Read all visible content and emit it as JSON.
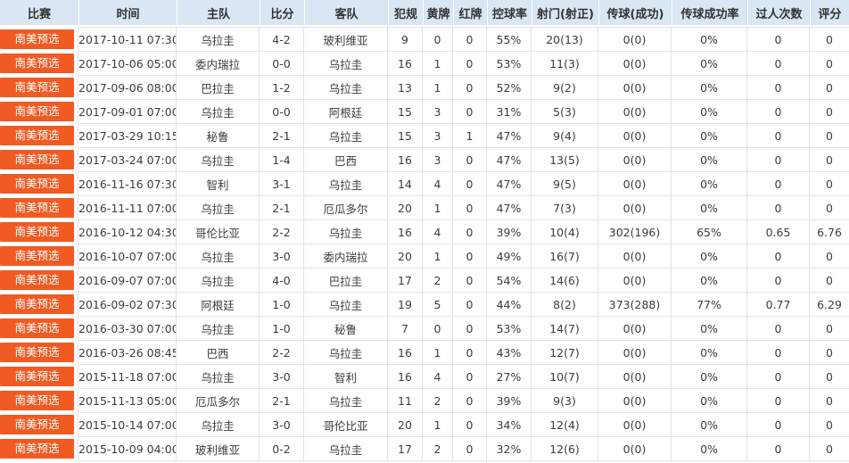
{
  "table": {
    "headers": [
      "比赛",
      "时间",
      "主队",
      "比分",
      "客队",
      "犯规",
      "黄牌",
      "红牌",
      "控球率",
      "射门(射正)",
      "传球(成功)",
      "传球成功率",
      "过人次数",
      "评分"
    ],
    "rows": [
      {
        "league": "南美预选",
        "time": "2017-10-11 07:30",
        "home": "乌拉圭",
        "score": "4-2",
        "away": "玻利维亚",
        "fouls": "9",
        "yellow": "0",
        "red": "0",
        "possession": "55%",
        "shots": "20(13)",
        "passes": "0(0)",
        "pass_rate": "0%",
        "dribbles": "0",
        "rating": "0"
      },
      {
        "league": "南美预选",
        "time": "2017-10-06 05:00",
        "home": "委内瑞拉",
        "score": "0-0",
        "away": "乌拉圭",
        "fouls": "16",
        "yellow": "1",
        "red": "0",
        "possession": "53%",
        "shots": "11(3)",
        "passes": "0(0)",
        "pass_rate": "0%",
        "dribbles": "0",
        "rating": "0"
      },
      {
        "league": "南美预选",
        "time": "2017-09-06 08:00",
        "home": "巴拉圭",
        "score": "1-2",
        "away": "乌拉圭",
        "fouls": "13",
        "yellow": "1",
        "red": "0",
        "possession": "52%",
        "shots": "9(2)",
        "passes": "0(0)",
        "pass_rate": "0%",
        "dribbles": "0",
        "rating": "0"
      },
      {
        "league": "南美预选",
        "time": "2017-09-01 07:00",
        "home": "乌拉圭",
        "score": "0-0",
        "away": "阿根廷",
        "fouls": "15",
        "yellow": "3",
        "red": "0",
        "possession": "31%",
        "shots": "5(3)",
        "passes": "0(0)",
        "pass_rate": "0%",
        "dribbles": "0",
        "rating": "0"
      },
      {
        "league": "南美预选",
        "time": "2017-03-29 10:15",
        "home": "秘鲁",
        "score": "2-1",
        "away": "乌拉圭",
        "fouls": "15",
        "yellow": "3",
        "red": "1",
        "possession": "47%",
        "shots": "9(4)",
        "passes": "0(0)",
        "pass_rate": "0%",
        "dribbles": "0",
        "rating": "0"
      },
      {
        "league": "南美预选",
        "time": "2017-03-24 07:00",
        "home": "乌拉圭",
        "score": "1-4",
        "away": "巴西",
        "fouls": "16",
        "yellow": "3",
        "red": "0",
        "possession": "47%",
        "shots": "13(5)",
        "passes": "0(0)",
        "pass_rate": "0%",
        "dribbles": "0",
        "rating": "0"
      },
      {
        "league": "南美预选",
        "time": "2016-11-16 07:30",
        "home": "智利",
        "score": "3-1",
        "away": "乌拉圭",
        "fouls": "14",
        "yellow": "4",
        "red": "0",
        "possession": "47%",
        "shots": "9(5)",
        "passes": "0(0)",
        "pass_rate": "0%",
        "dribbles": "0",
        "rating": "0"
      },
      {
        "league": "南美预选",
        "time": "2016-11-11 07:00",
        "home": "乌拉圭",
        "score": "2-1",
        "away": "厄瓜多尔",
        "fouls": "20",
        "yellow": "1",
        "red": "0",
        "possession": "47%",
        "shots": "7(3)",
        "passes": "0(0)",
        "pass_rate": "0%",
        "dribbles": "0",
        "rating": "0"
      },
      {
        "league": "南美预选",
        "time": "2016-10-12 04:30",
        "home": "哥伦比亚",
        "score": "2-2",
        "away": "乌拉圭",
        "fouls": "16",
        "yellow": "4",
        "red": "0",
        "possession": "39%",
        "shots": "10(4)",
        "passes": "302(196)",
        "pass_rate": "65%",
        "dribbles": "0.65",
        "rating": "6.76"
      },
      {
        "league": "南美预选",
        "time": "2016-10-07 07:00",
        "home": "乌拉圭",
        "score": "3-0",
        "away": "委内瑞拉",
        "fouls": "20",
        "yellow": "1",
        "red": "0",
        "possession": "49%",
        "shots": "16(7)",
        "passes": "0(0)",
        "pass_rate": "0%",
        "dribbles": "0",
        "rating": "0"
      },
      {
        "league": "南美预选",
        "time": "2016-09-07 07:00",
        "home": "乌拉圭",
        "score": "4-0",
        "away": "巴拉圭",
        "fouls": "17",
        "yellow": "2",
        "red": "0",
        "possession": "54%",
        "shots": "14(6)",
        "passes": "0(0)",
        "pass_rate": "0%",
        "dribbles": "0",
        "rating": "0"
      },
      {
        "league": "南美预选",
        "time": "2016-09-02 07:30",
        "home": "阿根廷",
        "score": "1-0",
        "away": "乌拉圭",
        "fouls": "19",
        "yellow": "5",
        "red": "0",
        "possession": "44%",
        "shots": "8(2)",
        "passes": "373(288)",
        "pass_rate": "77%",
        "dribbles": "0.77",
        "rating": "6.29"
      },
      {
        "league": "南美预选",
        "time": "2016-03-30 07:00",
        "home": "乌拉圭",
        "score": "1-0",
        "away": "秘鲁",
        "fouls": "7",
        "yellow": "0",
        "red": "0",
        "possession": "53%",
        "shots": "14(7)",
        "passes": "0(0)",
        "pass_rate": "0%",
        "dribbles": "0",
        "rating": "0"
      },
      {
        "league": "南美预选",
        "time": "2016-03-26 08:45",
        "home": "巴西",
        "score": "2-2",
        "away": "乌拉圭",
        "fouls": "16",
        "yellow": "1",
        "red": "0",
        "possession": "43%",
        "shots": "12(7)",
        "passes": "0(0)",
        "pass_rate": "0%",
        "dribbles": "0",
        "rating": "0"
      },
      {
        "league": "南美预选",
        "time": "2015-11-18 07:00",
        "home": "乌拉圭",
        "score": "3-0",
        "away": "智利",
        "fouls": "16",
        "yellow": "4",
        "red": "0",
        "possession": "27%",
        "shots": "10(7)",
        "passes": "0(0)",
        "pass_rate": "0%",
        "dribbles": "0",
        "rating": "0"
      },
      {
        "league": "南美预选",
        "time": "2015-11-13 05:00",
        "home": "厄瓜多尔",
        "score": "2-1",
        "away": "乌拉圭",
        "fouls": "11",
        "yellow": "2",
        "red": "0",
        "possession": "39%",
        "shots": "9(3)",
        "passes": "0(0)",
        "pass_rate": "0%",
        "dribbles": "0",
        "rating": "0"
      },
      {
        "league": "南美预选",
        "time": "2015-10-14 07:00",
        "home": "乌拉圭",
        "score": "3-0",
        "away": "哥伦比亚",
        "fouls": "20",
        "yellow": "1",
        "red": "0",
        "possession": "34%",
        "shots": "12(4)",
        "passes": "0(0)",
        "pass_rate": "0%",
        "dribbles": "0",
        "rating": "0"
      },
      {
        "league": "南美预选",
        "time": "2015-10-09 04:00",
        "home": "玻利维亚",
        "score": "0-2",
        "away": "乌拉圭",
        "fouls": "17",
        "yellow": "2",
        "red": "0",
        "possession": "32%",
        "shots": "12(6)",
        "passes": "0(0)",
        "pass_rate": "0%",
        "dribbles": "0",
        "rating": "0"
      }
    ]
  },
  "colors": {
    "header_bg": "#d9e6f3",
    "header_text": "#333333",
    "body_text": "#3c3c3c",
    "row_border": "#e2e2e2",
    "league_badge_bg": "#f15a23",
    "league_badge_text": "#ffffff",
    "page_bg": "#ffffff"
  }
}
